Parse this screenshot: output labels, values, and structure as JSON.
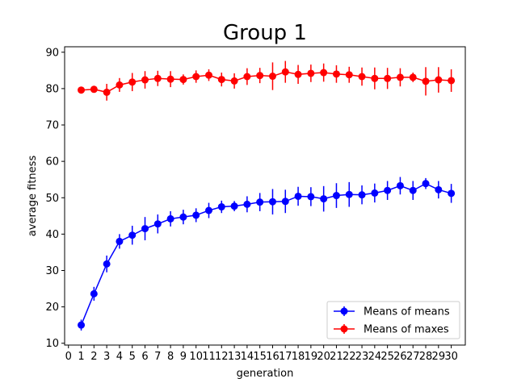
{
  "chart_data": {
    "type": "line",
    "title": "Group 1",
    "xlabel": "generation",
    "ylabel": "average fitness",
    "xlim": [
      -0.3,
      31.1
    ],
    "ylim": [
      9.5,
      91.5
    ],
    "xticks": [
      0,
      1,
      2,
      3,
      4,
      5,
      6,
      7,
      8,
      9,
      10,
      11,
      12,
      13,
      14,
      15,
      16,
      17,
      18,
      19,
      20,
      21,
      22,
      23,
      24,
      25,
      26,
      27,
      28,
      29,
      30
    ],
    "yticks": [
      10,
      20,
      30,
      40,
      50,
      60,
      70,
      80,
      90
    ],
    "grid": false,
    "legend_position": "lower-right",
    "x": [
      1,
      2,
      3,
      4,
      5,
      6,
      7,
      8,
      9,
      10,
      11,
      12,
      13,
      14,
      15,
      16,
      17,
      18,
      19,
      20,
      21,
      22,
      23,
      24,
      25,
      26,
      27,
      28,
      29,
      30
    ],
    "series": [
      {
        "name": "Means of means",
        "color": "#0000ff",
        "values": [
          15.0,
          23.6,
          31.8,
          38.0,
          39.7,
          41.5,
          42.8,
          44.2,
          44.7,
          45.2,
          46.5,
          47.5,
          47.7,
          48.2,
          48.8,
          48.9,
          49.0,
          50.4,
          50.3,
          49.7,
          50.6,
          50.9,
          50.8,
          51.3,
          52.0,
          53.3,
          52.0,
          53.9,
          52.2,
          51.2
        ],
        "errors": [
          1.5,
          1.9,
          2.3,
          2.0,
          2.6,
          3.2,
          2.6,
          2.1,
          2.0,
          1.9,
          2.1,
          1.7,
          1.4,
          2.2,
          2.5,
          3.5,
          3.2,
          2.6,
          2.6,
          3.5,
          3.4,
          3.4,
          2.6,
          2.6,
          2.6,
          2.4,
          2.6,
          1.5,
          2.4,
          2.6
        ]
      },
      {
        "name": "Means of maxes",
        "color": "#ff0000",
        "values": [
          79.6,
          79.8,
          79.0,
          81.0,
          81.8,
          82.4,
          82.8,
          82.6,
          82.5,
          83.3,
          83.7,
          82.5,
          82.1,
          83.3,
          83.6,
          83.4,
          84.6,
          83.9,
          84.2,
          84.4,
          84.0,
          83.8,
          83.3,
          82.8,
          82.8,
          83.1,
          83.1,
          82.0,
          82.4,
          82.2
        ],
        "errors": [
          0.6,
          0.8,
          2.3,
          1.9,
          2.5,
          2.4,
          2.1,
          2.2,
          1.4,
          1.7,
          1.6,
          1.9,
          2.1,
          2.3,
          2.1,
          3.8,
          3.0,
          2.6,
          2.4,
          2.5,
          2.4,
          2.2,
          2.5,
          3.0,
          2.9,
          2.5,
          1.3,
          3.9,
          3.5,
          3.1
        ]
      }
    ]
  }
}
